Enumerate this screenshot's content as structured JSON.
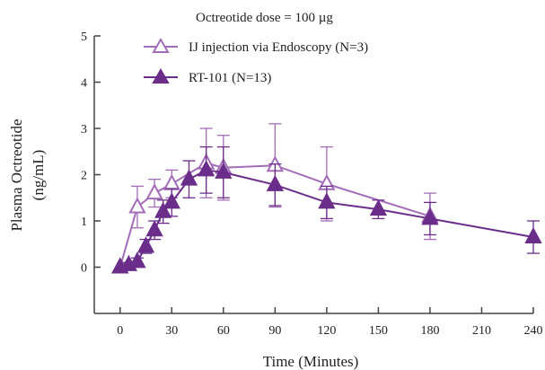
{
  "chart_data": {
    "type": "line",
    "annotation": "Octreotide dose = 100 µg",
    "xlabel": "Time (Minutes)",
    "ylabel_line1": "Plasma Octreotide",
    "ylabel_line2": "(ng/mL)",
    "xlim": [
      -15,
      240
    ],
    "ylim": [
      -1,
      5
    ],
    "xticks": [
      0,
      30,
      60,
      90,
      120,
      150,
      180,
      210,
      240
    ],
    "yticks": [
      0,
      1,
      2,
      3,
      4,
      5
    ],
    "legend_position": "top",
    "series": [
      {
        "name": "IJ injection via Endoscopy (N=3)",
        "marker": "open-triangle",
        "color": "#a36cb8",
        "x": [
          0,
          10,
          20,
          30,
          50,
          60,
          90,
          120,
          180
        ],
        "y": [
          0,
          1.3,
          1.6,
          1.8,
          2.25,
          2.15,
          2.2,
          1.8,
          1.1
        ],
        "err": [
          0,
          0.45,
          0.3,
          0.3,
          0.75,
          0.7,
          0.9,
          0.8,
          0.5
        ]
      },
      {
        "name": "RT-101 (N=13)",
        "marker": "filled-triangle",
        "color": "#6a2d8a",
        "x": [
          0,
          5,
          10,
          15,
          20,
          25,
          30,
          40,
          50,
          60,
          90,
          120,
          150,
          180,
          240
        ],
        "y": [
          0,
          0.05,
          0.12,
          0.45,
          0.8,
          1.2,
          1.4,
          1.9,
          2.1,
          2.05,
          1.78,
          1.4,
          1.25,
          1.05,
          0.65
        ],
        "err": [
          0,
          0.05,
          0.08,
          0.15,
          0.2,
          0.25,
          0.3,
          0.4,
          0.5,
          0.55,
          0.45,
          0.35,
          0.2,
          0.35,
          0.35
        ]
      }
    ]
  }
}
